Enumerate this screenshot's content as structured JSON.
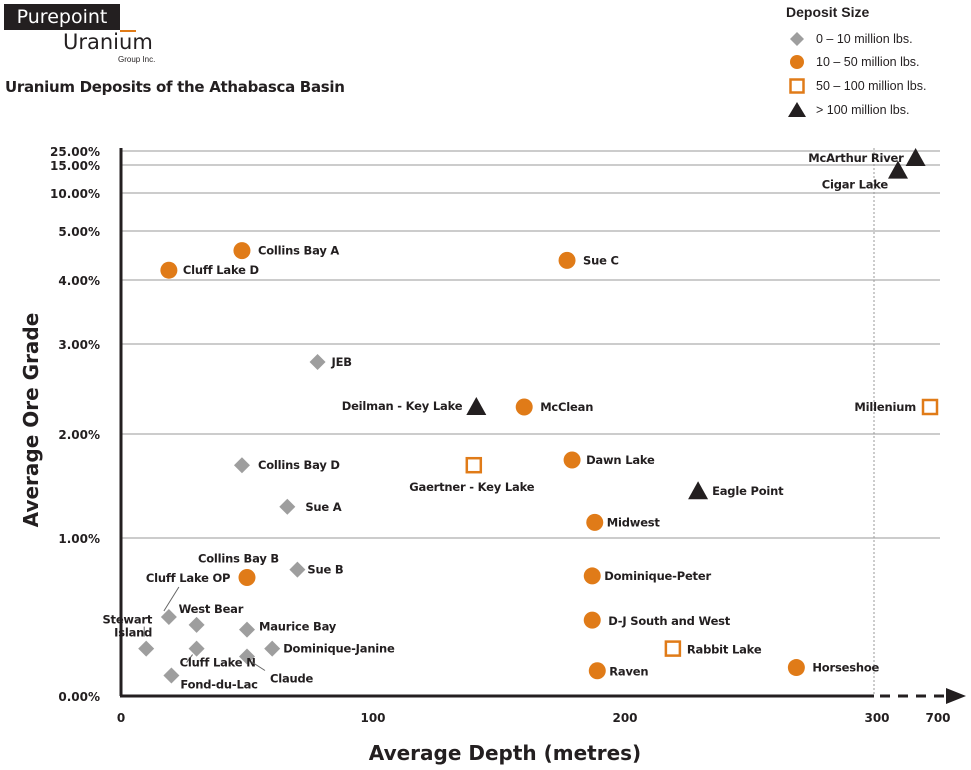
{
  "logo": {
    "name_line1": "Purepoint",
    "name_line2": "Uranium",
    "name_line3": "Group Inc."
  },
  "page_title": "Uranium Deposits of the Athabasca Basin",
  "legend": {
    "title": "Deposit Size",
    "items": [
      {
        "label": "0 – 10 million lbs.",
        "marker": "diamond",
        "color": "#9e9e9e"
      },
      {
        "label": "10 – 50 million lbs.",
        "marker": "circle",
        "color": "#e07b18"
      },
      {
        "label": "50 – 100 million lbs.",
        "marker": "square-open",
        "color": "#e07b18"
      },
      {
        "label": "> 100 million lbs.",
        "marker": "triangle",
        "color": "#231f20"
      }
    ]
  },
  "chart_data": {
    "type": "scatter",
    "xlabel": "Average Depth (metres)",
    "ylabel": "Average Ore Grade",
    "x_ticks": [
      {
        "value": 0,
        "label": "0"
      },
      {
        "value": 100,
        "label": "100"
      },
      {
        "value": 200,
        "label": "200"
      },
      {
        "value": 300,
        "label": "300"
      },
      {
        "value": 700,
        "label": "700"
      }
    ],
    "y_ticks": [
      {
        "value": 0,
        "label": "0.00%"
      },
      {
        "value": 1,
        "label": "1.00%"
      },
      {
        "value": 2,
        "label": "2.00%"
      },
      {
        "value": 3,
        "label": "3.00%"
      },
      {
        "value": 4,
        "label": "4.00%"
      },
      {
        "value": 5,
        "label": "5.00%"
      },
      {
        "value": 10,
        "label": "10.00%"
      },
      {
        "value": 15,
        "label": "15.00%"
      },
      {
        "value": 25,
        "label": "25.00%"
      }
    ],
    "grid": true,
    "axis_break": "x between 300 and 700",
    "colors": {
      "small": "#9e9e9e",
      "medium": "#e07b18",
      "large": "#e07b18",
      "huge": "#231f20",
      "grid": "#9a9a9a"
    },
    "points": [
      {
        "name": "McArthur River",
        "depth": 560,
        "grade": 20,
        "size": "huge"
      },
      {
        "name": "Cigar Lake",
        "depth": 450,
        "grade": 14,
        "size": "huge"
      },
      {
        "name": "Collins Bay A",
        "depth": 48,
        "grade": 4.6,
        "size": "medium"
      },
      {
        "name": "Cluff Lake D",
        "depth": 19,
        "grade": 4.2,
        "size": "medium"
      },
      {
        "name": "Sue C",
        "depth": 177,
        "grade": 4.4,
        "size": "medium"
      },
      {
        "name": "JEB",
        "depth": 78,
        "grade": 2.8,
        "size": "small"
      },
      {
        "name": "Deilman - Key Lake",
        "depth": 141,
        "grade": 2.3,
        "size": "huge"
      },
      {
        "name": "McClean",
        "depth": 160,
        "grade": 2.3,
        "size": "medium"
      },
      {
        "name": "Millenium",
        "depth": 650,
        "grade": 2.3,
        "size": "large"
      },
      {
        "name": "Collins Bay D",
        "depth": 48,
        "grade": 1.7,
        "size": "small"
      },
      {
        "name": "Gaertner - Key Lake",
        "depth": 140,
        "grade": 1.7,
        "size": "large"
      },
      {
        "name": "Dawn Lake",
        "depth": 179,
        "grade": 1.75,
        "size": "medium"
      },
      {
        "name": "Eagle Point",
        "depth": 229,
        "grade": 1.45,
        "size": "huge"
      },
      {
        "name": "Sue A",
        "depth": 66,
        "grade": 1.3,
        "size": "small"
      },
      {
        "name": "Midwest",
        "depth": 188,
        "grade": 1.15,
        "size": "medium"
      },
      {
        "name": "Sue B",
        "depth": 70,
        "grade": 0.8,
        "size": "small"
      },
      {
        "name": "Collins Bay B",
        "depth": 50,
        "grade": 0.75,
        "size": "medium"
      },
      {
        "name": "Dominique-Peter",
        "depth": 187,
        "grade": 0.76,
        "size": "medium"
      },
      {
        "name": "Stewart Island",
        "depth": 10,
        "grade": 0.3,
        "size": "small"
      },
      {
        "name": "Cluff Lake OP",
        "depth": 19,
        "grade": 0.5,
        "size": "small"
      },
      {
        "name": "West Bear",
        "depth": 30,
        "grade": 0.45,
        "size": "small"
      },
      {
        "name": "Maurice Bay",
        "depth": 50,
        "grade": 0.42,
        "size": "small"
      },
      {
        "name": "D-J South and West",
        "depth": 187,
        "grade": 0.48,
        "size": "medium"
      },
      {
        "name": "Dominique-Janine",
        "depth": 60,
        "grade": 0.3,
        "size": "small"
      },
      {
        "name": "Cluff Lake N",
        "depth": 30,
        "grade": 0.3,
        "size": "small"
      },
      {
        "name": "Claude",
        "depth": 50,
        "grade": 0.25,
        "size": "small"
      },
      {
        "name": "Rabbit Lake",
        "depth": 219,
        "grade": 0.3,
        "size": "large"
      },
      {
        "name": "Fond-du-Lac",
        "depth": 20,
        "grade": 0.13,
        "size": "small"
      },
      {
        "name": "Raven",
        "depth": 189,
        "grade": 0.16,
        "size": "medium"
      },
      {
        "name": "Horseshoe",
        "depth": 268,
        "grade": 0.18,
        "size": "medium"
      }
    ]
  }
}
